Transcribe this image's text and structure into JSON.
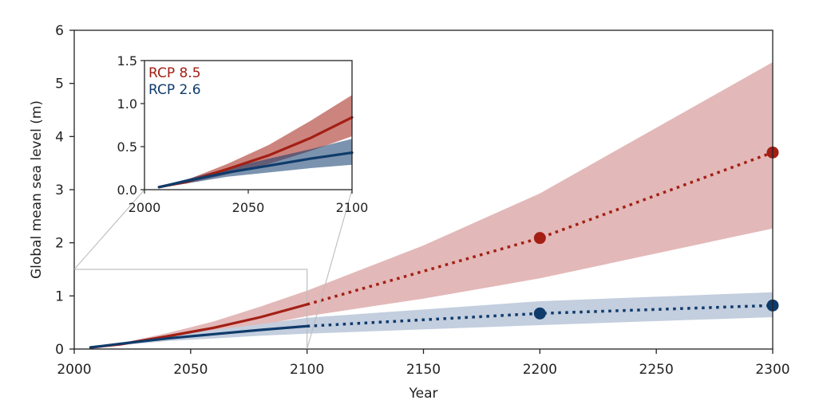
{
  "colors": {
    "rcp85": "#a31f14",
    "rcp85_band": "#e3b8b8",
    "rcp26": "#0f3b6b",
    "rcp26_band": "#c3cede",
    "axis": "#222222",
    "connector": "#bdbdbd"
  },
  "chart_data": [
    {
      "type": "line",
      "title": "",
      "xlabel": "Year",
      "ylabel": "Global mean sea level (m)",
      "xlim": [
        2000,
        2300
      ],
      "ylim": [
        0,
        6
      ],
      "xticks": [
        2000,
        2050,
        2100,
        2150,
        2200,
        2250,
        2300
      ],
      "yticks": [
        0,
        1,
        2,
        3,
        4,
        5,
        6
      ],
      "grid": false,
      "series": [
        {
          "name": "RCP 8.5",
          "color_key": "rcp85",
          "band_color_key": "rcp85_band",
          "line": [
            [
              2007,
              0.03
            ],
            [
              2020,
              0.09
            ],
            [
              2040,
              0.24
            ],
            [
              2060,
              0.4
            ],
            [
              2080,
              0.6
            ],
            [
              2100,
              0.84
            ]
          ],
          "lower": [
            [
              2007,
              0.02
            ],
            [
              2020,
              0.07
            ],
            [
              2040,
              0.18
            ],
            [
              2060,
              0.3
            ],
            [
              2080,
              0.45
            ],
            [
              2100,
              0.62
            ],
            [
              2150,
              0.95
            ],
            [
              2200,
              1.33
            ],
            [
              2300,
              2.27
            ]
          ],
          "upper": [
            [
              2007,
              0.04
            ],
            [
              2020,
              0.11
            ],
            [
              2040,
              0.3
            ],
            [
              2060,
              0.52
            ],
            [
              2080,
              0.8
            ],
            [
              2100,
              1.1
            ],
            [
              2150,
              1.95
            ],
            [
              2200,
              2.93
            ],
            [
              2300,
              5.4
            ]
          ],
          "projection": [
            [
              2100,
              0.84
            ],
            [
              2200,
              2.09
            ],
            [
              2300,
              3.7
            ]
          ],
          "markers": [
            [
              2200,
              2.09
            ],
            [
              2300,
              3.7
            ]
          ]
        },
        {
          "name": "RCP 2.6",
          "color_key": "rcp26",
          "band_color_key": "rcp26_band",
          "line": [
            [
              2007,
              0.03
            ],
            [
              2020,
              0.1
            ],
            [
              2040,
              0.2
            ],
            [
              2060,
              0.28
            ],
            [
              2080,
              0.36
            ],
            [
              2100,
              0.43
            ]
          ],
          "lower": [
            [
              2007,
              0.02
            ],
            [
              2020,
              0.07
            ],
            [
              2040,
              0.15
            ],
            [
              2060,
              0.2
            ],
            [
              2080,
              0.25
            ],
            [
              2100,
              0.29
            ],
            [
              2200,
              0.45
            ],
            [
              2300,
              0.6
            ]
          ],
          "upper": [
            [
              2007,
              0.04
            ],
            [
              2020,
              0.12
            ],
            [
              2040,
              0.25
            ],
            [
              2060,
              0.36
            ],
            [
              2080,
              0.47
            ],
            [
              2100,
              0.59
            ],
            [
              2200,
              0.9
            ],
            [
              2300,
              1.07
            ]
          ],
          "projection": [
            [
              2100,
              0.43
            ],
            [
              2200,
              0.67
            ],
            [
              2300,
              0.82
            ]
          ],
          "markers": [
            [
              2200,
              0.67
            ],
            [
              2300,
              0.82
            ]
          ]
        }
      ]
    },
    {
      "type": "line",
      "title": "",
      "xlabel": "",
      "ylabel": "",
      "xlim": [
        2000,
        2100
      ],
      "ylim": [
        0,
        1.5
      ],
      "xticks": [
        2000,
        2050,
        2100
      ],
      "xtick_labels": [
        "2000",
        "2050",
        "2100"
      ],
      "yticks": [
        0,
        0.5,
        1.0,
        1.5
      ],
      "ytick_labels": [
        "0.0",
        "0.5",
        "1.0",
        "1.5"
      ],
      "legend": [
        "RCP 8.5",
        "RCP 2.6"
      ],
      "legend_placement": "top-left",
      "grid": false,
      "series": [
        {
          "name": "RCP 8.5",
          "color_key": "rcp85",
          "band_color_key": "rcp85_band",
          "line": [
            [
              2007,
              0.03
            ],
            [
              2020,
              0.09
            ],
            [
              2040,
              0.24
            ],
            [
              2060,
              0.4
            ],
            [
              2080,
              0.6
            ],
            [
              2100,
              0.84
            ]
          ],
          "lower": [
            [
              2007,
              0.02
            ],
            [
              2020,
              0.07
            ],
            [
              2040,
              0.18
            ],
            [
              2060,
              0.3
            ],
            [
              2080,
              0.45
            ],
            [
              2100,
              0.62
            ]
          ],
          "upper": [
            [
              2007,
              0.04
            ],
            [
              2020,
              0.11
            ],
            [
              2040,
              0.3
            ],
            [
              2060,
              0.52
            ],
            [
              2080,
              0.8
            ],
            [
              2100,
              1.1
            ]
          ]
        },
        {
          "name": "RCP 2.6",
          "color_key": "rcp26",
          "band_color_key": "rcp26_band",
          "line": [
            [
              2007,
              0.03
            ],
            [
              2020,
              0.1
            ],
            [
              2040,
              0.2
            ],
            [
              2060,
              0.28
            ],
            [
              2080,
              0.36
            ],
            [
              2100,
              0.43
            ]
          ],
          "lower": [
            [
              2007,
              0.02
            ],
            [
              2020,
              0.07
            ],
            [
              2040,
              0.15
            ],
            [
              2060,
              0.2
            ],
            [
              2080,
              0.25
            ],
            [
              2100,
              0.29
            ]
          ],
          "upper": [
            [
              2007,
              0.04
            ],
            [
              2020,
              0.12
            ],
            [
              2040,
              0.25
            ],
            [
              2060,
              0.36
            ],
            [
              2080,
              0.47
            ],
            [
              2100,
              0.59
            ]
          ]
        }
      ]
    }
  ]
}
